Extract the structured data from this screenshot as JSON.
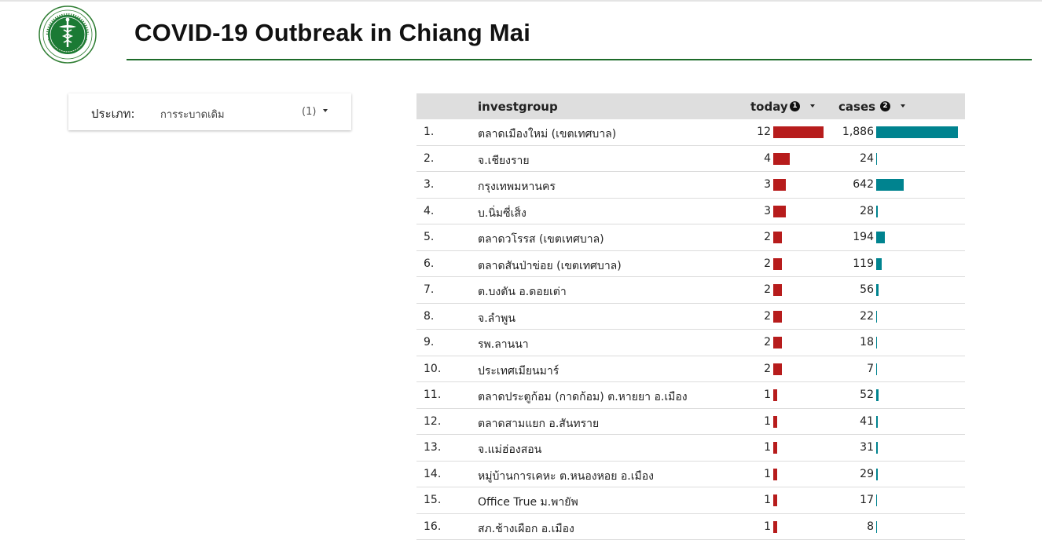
{
  "header": {
    "title": "COVID-19 Outbreak in Chiang Mai"
  },
  "filter": {
    "label": "ประเภท",
    "value": "การระบาดเดิม",
    "count": "(1)"
  },
  "table": {
    "columns": {
      "investgroup": "investgroup",
      "today": "today",
      "today_sort_order": "1",
      "cases": "cases",
      "cases_sort_order": "2"
    },
    "max_today": 12,
    "max_cases": 1886,
    "rows": [
      {
        "idx": "1.",
        "group": "ตลาดเมืองใหม่ (เขตเทศบาล)",
        "today": 12,
        "today_text": "12",
        "cases": 1886,
        "cases_text": "1,886"
      },
      {
        "idx": "2.",
        "group": "จ.เชียงราย",
        "today": 4,
        "today_text": "4",
        "cases": 24,
        "cases_text": "24"
      },
      {
        "idx": "3.",
        "group": "กรุงเทพมหานคร",
        "today": 3,
        "today_text": "3",
        "cases": 642,
        "cases_text": "642"
      },
      {
        "idx": "4.",
        "group": "บ.นิ่มซี่เส็ง",
        "today": 3,
        "today_text": "3",
        "cases": 28,
        "cases_text": "28"
      },
      {
        "idx": "5.",
        "group": "ตลาดวโรรส (เขตเทศบาล)",
        "today": 2,
        "today_text": "2",
        "cases": 194,
        "cases_text": "194"
      },
      {
        "idx": "6.",
        "group": "ตลาดสันป่าข่อย (เขตเทศบาล)",
        "today": 2,
        "today_text": "2",
        "cases": 119,
        "cases_text": "119"
      },
      {
        "idx": "7.",
        "group": "ต.บงตัน อ.ดอยเต่า",
        "today": 2,
        "today_text": "2",
        "cases": 56,
        "cases_text": "56"
      },
      {
        "idx": "8.",
        "group": "จ.ลำพูน",
        "today": 2,
        "today_text": "2",
        "cases": 22,
        "cases_text": "22"
      },
      {
        "idx": "9.",
        "group": "รพ.ลานนา",
        "today": 2,
        "today_text": "2",
        "cases": 18,
        "cases_text": "18"
      },
      {
        "idx": "10.",
        "group": "ประเทศเมียนมาร์",
        "today": 2,
        "today_text": "2",
        "cases": 7,
        "cases_text": "7"
      },
      {
        "idx": "11.",
        "group": "ตลาดประตูก้อม (กาดก้อม) ต.หายยา อ.เมือง",
        "today": 1,
        "today_text": "1",
        "cases": 52,
        "cases_text": "52"
      },
      {
        "idx": "12.",
        "group": "ตลาดสามแยก อ.สันทราย",
        "today": 1,
        "today_text": "1",
        "cases": 41,
        "cases_text": "41"
      },
      {
        "idx": "13.",
        "group": "จ.แม่ฮ่องสอน",
        "today": 1,
        "today_text": "1",
        "cases": 31,
        "cases_text": "31"
      },
      {
        "idx": "14.",
        "group": "หมู่บ้านการเคหะ ต.หนองหอย อ.เมือง",
        "today": 1,
        "today_text": "1",
        "cases": 29,
        "cases_text": "29"
      },
      {
        "idx": "15.",
        "group": "Office True ม.พายัพ",
        "today": 1,
        "today_text": "1",
        "cases": 17,
        "cases_text": "17"
      },
      {
        "idx": "16.",
        "group": "สภ.ช้างเผือก อ.เมือง",
        "today": 1,
        "today_text": "1",
        "cases": 8,
        "cases_text": "8"
      }
    ]
  },
  "colors": {
    "today_bar": "#b71c1c",
    "cases_bar": "#00838f",
    "title_rule": "#1e6b2a",
    "header_bg": "#dedede"
  }
}
